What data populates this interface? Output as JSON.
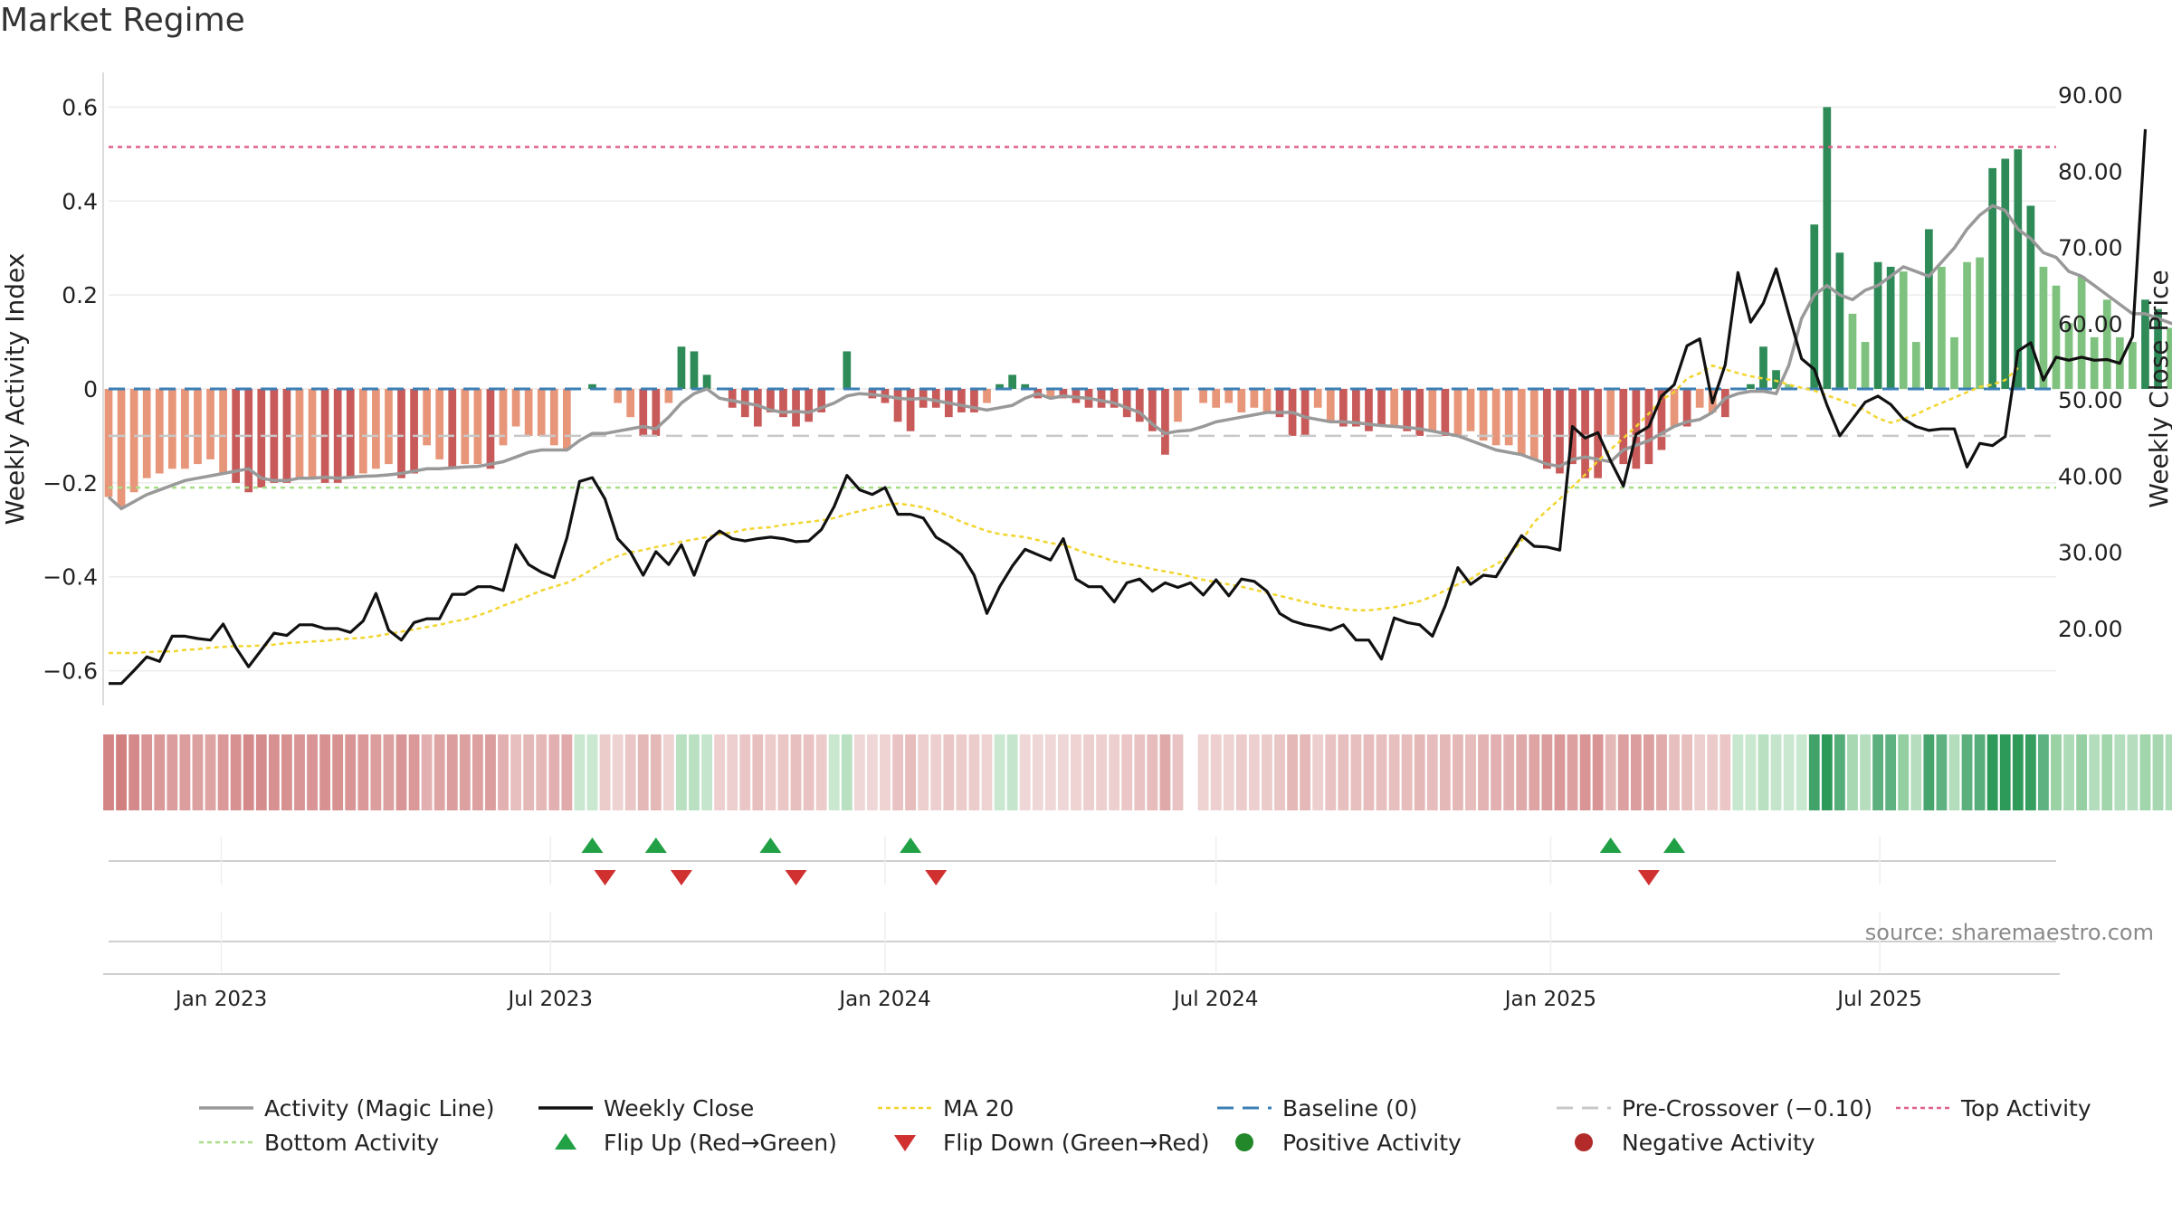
{
  "title": "Market Regime",
  "source": "source: sharemaestro.com",
  "colors": {
    "pos_dark": "#2e8b57",
    "pos_light": "#7fc27f",
    "neg_dark": "#c85a5a",
    "neg_light": "#e8967a",
    "magic": "#999999",
    "close": "#111111",
    "ma": "#f2d52e",
    "baseline": "#3b7fb5",
    "precross": "#c8c8c8",
    "top": "#e0608a",
    "bottom": "#a8dd88",
    "flip_up": "#22a045",
    "flip_down": "#d03030"
  },
  "chart_data": {
    "type": "bar",
    "title": "Market Regime",
    "ylabel": "Weekly Activity Index",
    "y2label": "Weekly Close Price",
    "ylim": [
      -0.62,
      0.62
    ],
    "y2lim": [
      13.24,
      89.64
    ],
    "yticks": [
      "0.6",
      "0.4",
      "0.2",
      "0",
      "−0.2",
      "−0.4",
      "−0.6"
    ],
    "y2ticks": [
      "90.00",
      "80.00",
      "70.00",
      "60.00",
      "50.00",
      "40.00",
      "30.00",
      "20.00"
    ],
    "xticks": [
      "Jan 2023",
      "Jul 2023",
      "Jan 2024",
      "Jul 2024",
      "Jan 2025",
      "Jul 2025"
    ],
    "x_start": "2022-10-31",
    "x_end": "2025-10-06",
    "top_activity": 0.515,
    "bottom_activity": -0.21,
    "pre_crossover": -0.1,
    "baseline": 0,
    "weeks": 154,
    "series": [
      {
        "name": "Weekly Activity Index (bars)",
        "values": [
          -0.23,
          -0.25,
          -0.22,
          -0.19,
          -0.18,
          -0.17,
          -0.17,
          -0.16,
          -0.15,
          -0.18,
          -0.2,
          -0.22,
          -0.21,
          -0.2,
          -0.2,
          -0.19,
          -0.19,
          -0.2,
          -0.2,
          -0.19,
          -0.18,
          -0.17,
          -0.16,
          -0.19,
          -0.18,
          -0.12,
          -0.15,
          -0.17,
          -0.16,
          -0.16,
          -0.17,
          -0.12,
          -0.08,
          -0.1,
          -0.1,
          -0.12,
          -0.13,
          0,
          0.01,
          0,
          -0.03,
          -0.06,
          -0.1,
          -0.1,
          -0.03,
          0.09,
          0.08,
          0.03,
          0,
          -0.04,
          -0.06,
          -0.08,
          -0.05,
          -0.06,
          -0.08,
          -0.07,
          -0.05,
          0,
          0.08,
          0,
          -0.02,
          -0.03,
          -0.07,
          -0.09,
          -0.04,
          -0.04,
          -0.06,
          -0.05,
          -0.05,
          -0.03,
          0.01,
          0.03,
          0.01,
          -0.02,
          -0.02,
          -0.02,
          -0.03,
          -0.04,
          -0.04,
          -0.04,
          -0.06,
          -0.07,
          -0.09,
          -0.14,
          -0.07,
          null,
          -0.03,
          -0.04,
          -0.03,
          -0.05,
          -0.04,
          -0.05,
          -0.06,
          -0.1,
          -0.1,
          -0.04,
          -0.07,
          -0.08,
          -0.08,
          -0.09,
          -0.08,
          -0.08,
          -0.09,
          -0.1,
          -0.09,
          -0.1,
          -0.1,
          -0.09,
          -0.11,
          -0.12,
          -0.12,
          -0.14,
          -0.15,
          -0.17,
          -0.18,
          -0.16,
          -0.19,
          -0.19,
          -0.1,
          -0.16,
          -0.17,
          -0.16,
          -0.13,
          -0.08,
          -0.08,
          -0.04,
          -0.05,
          -0.06,
          0,
          0.01,
          0.09,
          0.04,
          0.01,
          0,
          0.35,
          0.6,
          0.29,
          0.16,
          0.1,
          0.27,
          0.26,
          0.25,
          0.1,
          0.34,
          0.26,
          0.11,
          0.27,
          0.28,
          0.47,
          0.49,
          0.51,
          0.39,
          0.26,
          0.22,
          0.14,
          0.24,
          0.11,
          0.19,
          0.11,
          0.1,
          0.19,
          0.17,
          0.13,
          0.11,
          0.08,
          0.1,
          0.09,
          0.1,
          0.08,
          0.06,
          0.08,
          0.35,
          0.3,
          0.22,
          0.13,
          0.28,
          0.16,
          0.14,
          0.43,
          0.14,
          0.09,
          0.23,
          0.48
        ]
      },
      {
        "name": "Activity (Magic Line)",
        "values": [
          -0.23,
          -0.255,
          -0.24,
          -0.225,
          -0.215,
          -0.205,
          -0.195,
          -0.19,
          -0.185,
          -0.18,
          -0.175,
          -0.17,
          -0.19,
          -0.195,
          -0.195,
          -0.19,
          -0.19,
          -0.188,
          -0.19,
          -0.188,
          -0.186,
          -0.185,
          -0.183,
          -0.18,
          -0.175,
          -0.17,
          -0.17,
          -0.168,
          -0.166,
          -0.165,
          -0.16,
          -0.155,
          -0.145,
          -0.135,
          -0.13,
          -0.13,
          -0.13,
          -0.11,
          -0.095,
          -0.095,
          -0.09,
          -0.085,
          -0.08,
          -0.085,
          -0.06,
          -0.03,
          -0.01,
          0,
          -0.02,
          -0.025,
          -0.03,
          -0.035,
          -0.045,
          -0.05,
          -0.048,
          -0.05,
          -0.04,
          -0.03,
          -0.015,
          -0.01,
          -0.012,
          -0.015,
          -0.02,
          -0.022,
          -0.02,
          -0.025,
          -0.03,
          -0.035,
          -0.04,
          -0.045,
          -0.04,
          -0.035,
          -0.02,
          -0.01,
          -0.02,
          -0.015,
          -0.018,
          -0.02,
          -0.025,
          -0.03,
          -0.04,
          -0.05,
          -0.075,
          -0.095,
          -0.09,
          -0.088,
          -0.08,
          -0.07,
          -0.065,
          -0.06,
          -0.055,
          -0.05,
          -0.05,
          -0.05,
          -0.06,
          -0.065,
          -0.07,
          -0.07,
          -0.072,
          -0.075,
          -0.078,
          -0.08,
          -0.082,
          -0.085,
          -0.09,
          -0.095,
          -0.1,
          -0.11,
          -0.12,
          -0.13,
          -0.135,
          -0.14,
          -0.15,
          -0.16,
          -0.165,
          -0.15,
          -0.145,
          -0.15,
          -0.155,
          -0.13,
          -0.12,
          -0.11,
          -0.095,
          -0.08,
          -0.07,
          -0.065,
          -0.05,
          -0.02,
          -0.01,
          -0.005,
          -0.005,
          -0.01,
          0.05,
          0.15,
          0.2,
          0.22,
          0.2,
          0.19,
          0.21,
          0.22,
          0.24,
          0.26,
          0.25,
          0.24,
          0.27,
          0.3,
          0.34,
          0.37,
          0.39,
          0.38,
          0.34,
          0.32,
          0.29,
          0.28,
          0.25,
          0.24,
          0.22,
          0.2,
          0.18,
          0.16,
          0.16,
          0.15,
          0.14,
          0.13,
          0.12,
          0.11,
          0.1,
          0.1,
          0.12,
          0.18,
          0.2,
          0.21,
          0.2,
          0.21,
          0.22,
          0.2,
          0.24,
          0.21,
          0.2,
          0.19,
          0.27
        ]
      },
      {
        "name": "Weekly Close",
        "values": [
          12.8,
          12.8,
          14.5,
          16.3,
          15.7,
          19,
          19,
          18.7,
          18.5,
          20.6,
          17.5,
          15,
          17.2,
          19.4,
          19.1,
          20.5,
          20.5,
          20,
          20,
          19.5,
          21,
          24.6,
          19.8,
          18.5,
          20.8,
          21.3,
          21.3,
          24.5,
          24.5,
          25.5,
          25.5,
          25,
          31,
          28.4,
          27.4,
          26.7,
          31.9,
          39.3,
          39.8,
          37,
          31.8,
          30,
          27,
          30.1,
          28.4,
          31,
          27,
          31.4,
          32.8,
          31.8,
          31.5,
          31.8,
          32,
          31.8,
          31.4,
          31.5,
          33,
          36,
          40.1,
          38.2,
          37.6,
          38.5,
          35,
          35,
          34.5,
          32,
          31,
          29.7,
          27,
          22,
          25.5,
          28.2,
          30.4,
          29.7,
          29,
          31.8,
          26.5,
          25.5,
          25.5,
          23.5,
          26,
          26.5,
          24.9,
          26,
          25.4,
          26,
          24.4,
          26.4,
          24.3,
          26.5,
          26.2,
          24.9,
          22,
          21,
          20.5,
          20.2,
          19.8,
          20.5,
          18.5,
          18.5,
          16,
          21.4,
          20.8,
          20.5,
          19,
          23,
          28,
          25.8,
          27,
          26.8,
          29.5,
          32.2,
          30.8,
          30.7,
          30.3,
          46.5,
          45,
          45.7,
          42,
          38.7,
          45.5,
          46.5,
          50.5,
          52,
          57.1,
          58,
          49.6,
          54.6,
          66.7,
          60.2,
          62.7,
          67.2,
          61.2,
          55.4,
          54,
          49.3,
          45.3,
          47.5,
          49.7,
          50.5,
          49.4,
          47.5,
          46.5,
          46,
          46.2,
          46.2,
          41.2,
          44.3,
          44,
          45.2,
          56.4,
          57.5,
          52.6,
          55.6,
          55.2,
          55.6,
          55.2,
          55.3,
          54.8,
          58.3,
          85.5
        ]
      },
      {
        "name": "MA 20",
        "values": [
          16.8,
          16.8,
          16.8,
          16.9,
          17,
          17,
          17.2,
          17.3,
          17.5,
          17.6,
          17.7,
          17.7,
          17.8,
          17.9,
          18.1,
          18.2,
          18.3,
          18.4,
          18.6,
          18.7,
          18.8,
          19,
          19.3,
          19.6,
          19.9,
          20.2,
          20.5,
          20.9,
          21.2,
          21.7,
          22.3,
          23,
          23.6,
          24.3,
          25,
          25.5,
          26,
          26.8,
          27.8,
          28.8,
          29.5,
          30,
          30.3,
          30.7,
          31,
          31.4,
          31.7,
          32,
          32.4,
          32.6,
          33,
          33.2,
          33.3,
          33.6,
          33.8,
          34,
          34.2,
          34.5,
          35,
          35.4,
          35.8,
          36.2,
          36.4,
          36.2,
          35.9,
          35.4,
          34.8,
          34,
          33.4,
          32.8,
          32.4,
          32.2,
          32,
          31.6,
          31.2,
          31,
          30.4,
          29.8,
          29.4,
          28.8,
          28.5,
          28.2,
          27.8,
          27.5,
          27.2,
          26.8,
          26.4,
          26.1,
          25.8,
          25.5,
          25.1,
          24.7,
          24.3,
          23.9,
          23.5,
          23.1,
          22.8,
          22.6,
          22.4,
          22.4,
          22.6,
          22.8,
          23.2,
          23.6,
          24.2,
          25,
          25.8,
          26.5,
          27.6,
          28.4,
          29.5,
          31.5,
          34,
          35.5,
          37,
          38.6,
          40.2,
          42,
          43.5,
          45,
          46.5,
          48.2,
          50,
          51,
          52.8,
          53.5,
          54.5,
          54,
          53.5,
          53.1,
          52.8,
          52.5,
          52,
          51.6,
          51.2,
          50.6,
          50,
          49.4,
          48.6,
          47.6,
          47,
          47.5,
          48.1,
          48.9,
          49.6,
          50.3,
          51,
          51.7,
          52,
          52.6,
          54.2
        ]
      }
    ],
    "flip_up_weeks": [
      38,
      43,
      52,
      63,
      118,
      123
    ],
    "flip_down_weeks": [
      39,
      45,
      54,
      65,
      121
    ],
    "regime_strip": [
      -0.23,
      -0.25,
      -0.22,
      -0.19,
      -0.18,
      -0.17,
      -0.17,
      -0.16,
      -0.15,
      -0.18,
      -0.2,
      -0.22,
      -0.21,
      -0.2,
      -0.2,
      -0.19,
      -0.19,
      -0.2,
      -0.2,
      -0.19,
      -0.18,
      -0.17,
      -0.16,
      -0.19,
      -0.18,
      -0.12,
      -0.15,
      -0.17,
      -0.16,
      -0.16,
      -0.17,
      -0.12,
      -0.08,
      -0.1,
      -0.1,
      -0.12,
      -0.13,
      0.01,
      0.01,
      -0.05,
      -0.03,
      -0.06,
      -0.1,
      -0.1,
      -0.03,
      0.09,
      0.08,
      0.03,
      -0.04,
      -0.04,
      -0.06,
      -0.08,
      -0.05,
      -0.06,
      -0.08,
      -0.07,
      -0.05,
      0.01,
      0.08,
      -0.02,
      -0.02,
      -0.03,
      -0.07,
      -0.09,
      -0.04,
      -0.04,
      -0.06,
      -0.05,
      -0.05,
      -0.03,
      0.01,
      0.03,
      -0.02,
      -0.02,
      -0.02,
      -0.02,
      -0.03,
      -0.04,
      -0.04,
      -0.04,
      -0.06,
      -0.07,
      -0.09,
      -0.14,
      -0.07,
      null,
      -0.03,
      -0.04,
      -0.03,
      -0.05,
      -0.04,
      -0.05,
      -0.06,
      -0.1,
      -0.1,
      -0.04,
      -0.07,
      -0.08,
      -0.08,
      -0.09,
      -0.08,
      -0.08,
      -0.09,
      -0.1,
      -0.09,
      -0.1,
      -0.1,
      -0.09,
      -0.11,
      -0.12,
      -0.12,
      -0.14,
      -0.15,
      -0.17,
      -0.18,
      -0.16,
      -0.19,
      -0.19,
      -0.1,
      -0.16,
      -0.17,
      -0.16,
      -0.13,
      -0.08,
      -0.08,
      -0.04,
      -0.05,
      -0.06,
      0.02,
      0.01,
      0.09,
      0.04,
      0.01,
      0.02,
      0.35,
      0.6,
      0.29,
      0.16,
      0.1,
      0.27,
      0.26,
      0.25,
      0.1,
      0.34,
      0.26,
      0.11,
      0.27,
      0.28,
      0.47,
      0.49,
      0.51,
      0.39,
      0.26,
      0.22,
      0.14,
      0.24,
      0.11,
      0.19,
      0.11,
      0.1,
      0.19,
      0.17,
      0.13,
      0.11,
      0.08,
      0.1,
      0.09,
      0.1,
      0.08,
      0.06,
      0.08,
      0.35,
      0.3,
      0.22,
      0.13,
      0.28,
      0.16,
      0.14,
      0.43,
      0.14,
      0.09,
      0.23,
      0.48
    ]
  },
  "legend": [
    {
      "label": "Activity (Magic Line)",
      "kind": "line",
      "color": "#999999"
    },
    {
      "label": "Weekly Close",
      "kind": "line",
      "color": "#111111"
    },
    {
      "label": "MA 20",
      "kind": "dotted",
      "color": "#f2d52e"
    },
    {
      "label": "Baseline (0)",
      "kind": "dashed",
      "color": "#3b7fb5"
    },
    {
      "label": "Pre-Crossover (−0.10)",
      "kind": "dashed",
      "color": "#c8c8c8"
    },
    {
      "label": "Top Activity",
      "kind": "dotted",
      "color": "#e0608a"
    },
    {
      "label": "Bottom Activity",
      "kind": "dotted",
      "color": "#a8dd88"
    },
    {
      "label": "Flip Up (Red→Green)",
      "kind": "tri-up",
      "color": "#22a045"
    },
    {
      "label": "Flip Down (Green→Red)",
      "kind": "tri-down",
      "color": "#d03030"
    },
    {
      "label": "Positive Activity",
      "kind": "dot",
      "color": "#22882a"
    },
    {
      "label": "Negative Activity",
      "kind": "dot",
      "color": "#b22a2a"
    }
  ]
}
